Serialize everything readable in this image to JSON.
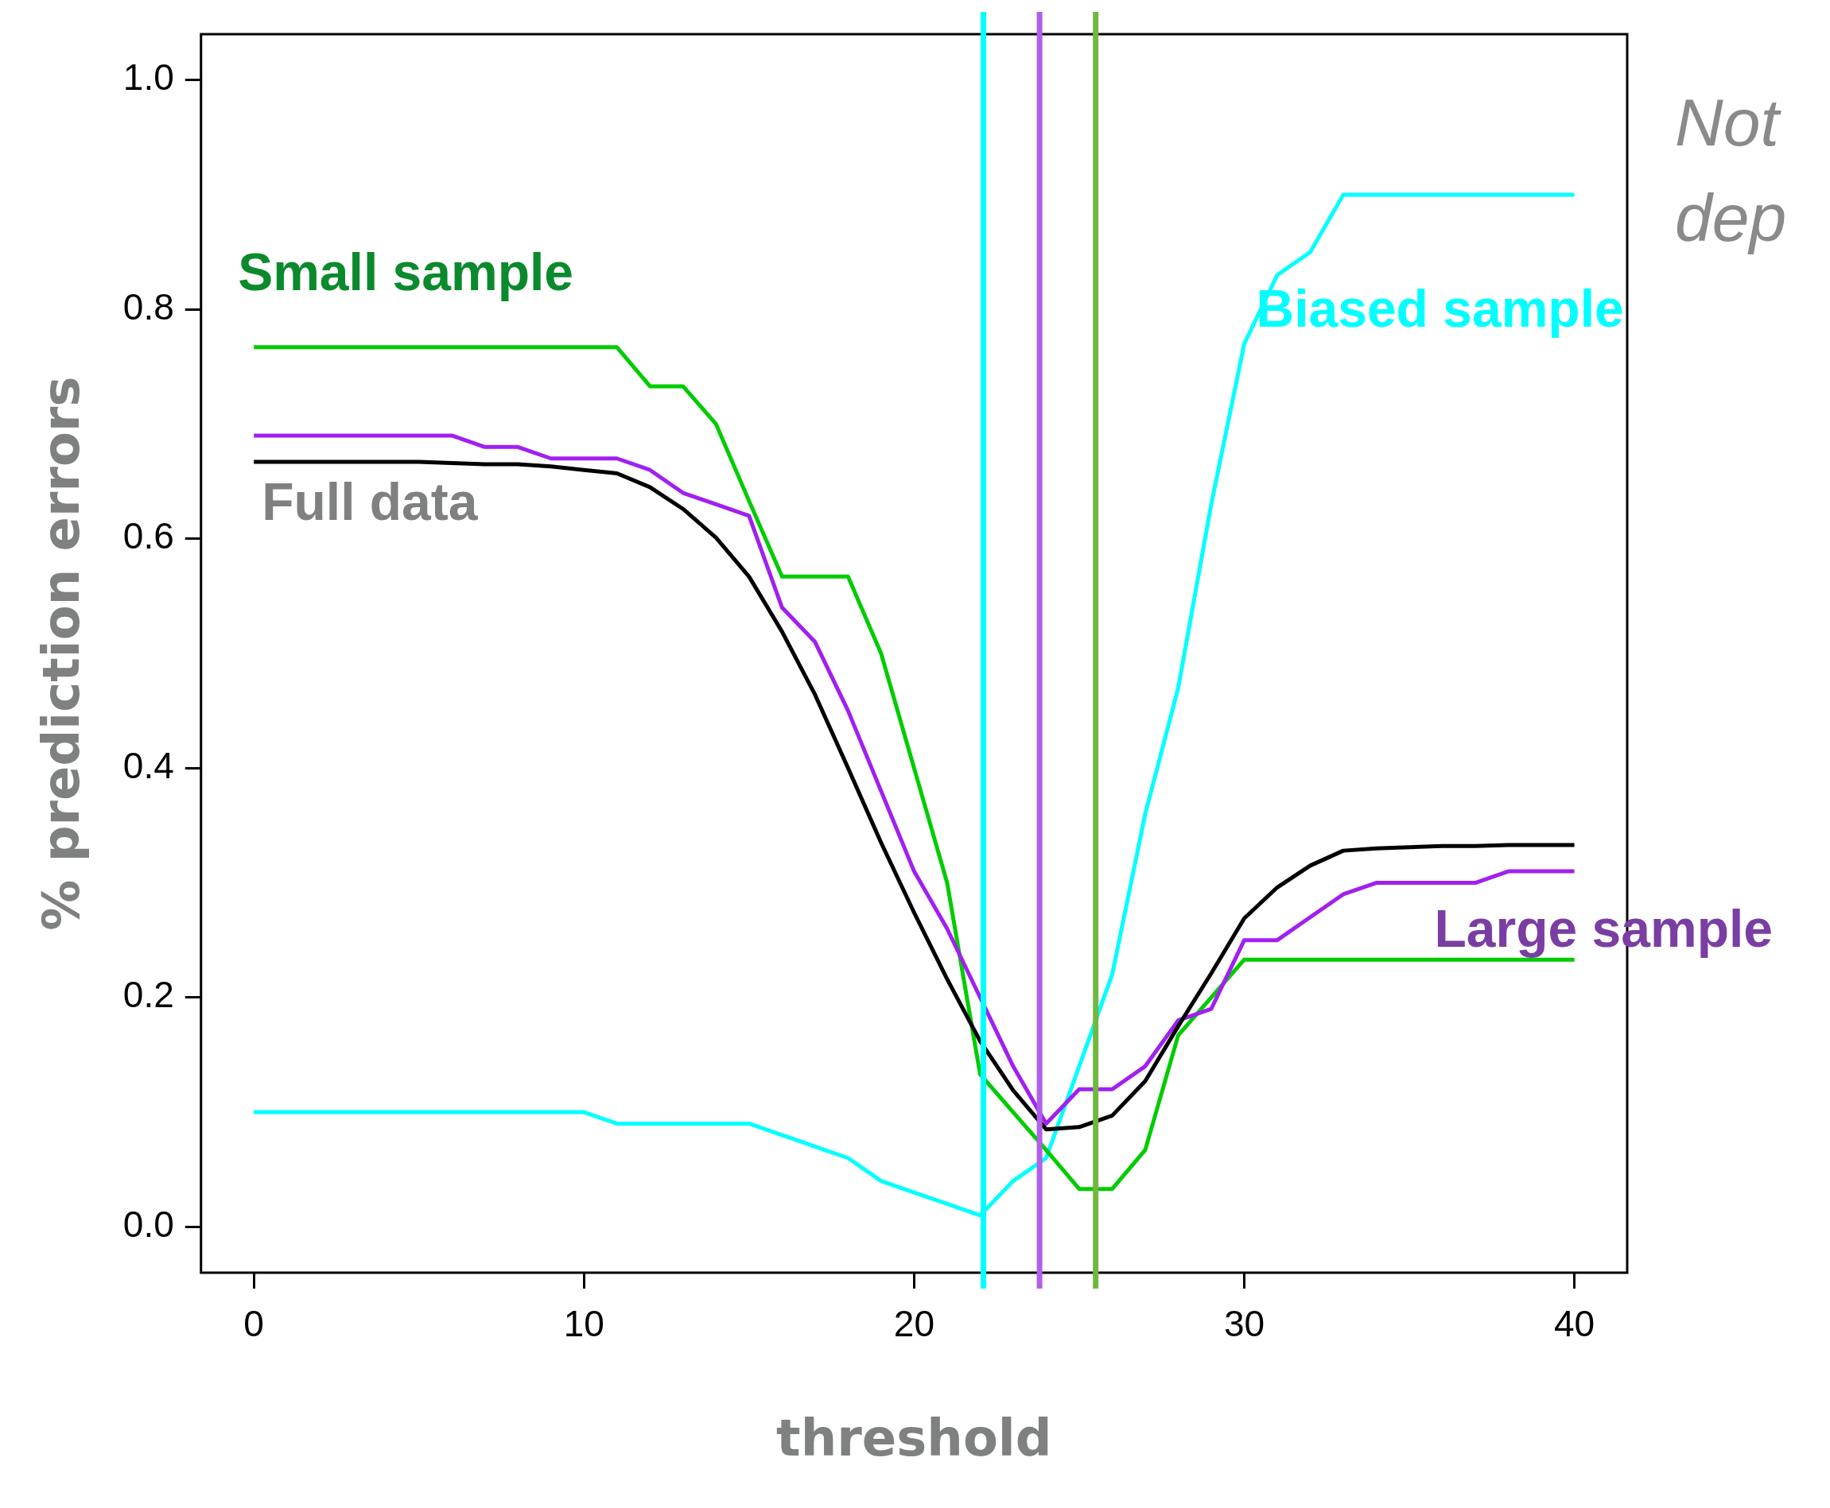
{
  "chart_data": {
    "type": "line",
    "xlabel": "threshold",
    "ylabel": "% prediction errors",
    "x": [
      0,
      1,
      2,
      3,
      4,
      5,
      6,
      7,
      8,
      9,
      10,
      11,
      12,
      13,
      14,
      15,
      16,
      17,
      18,
      19,
      20,
      21,
      22,
      23,
      24,
      25,
      26,
      27,
      28,
      29,
      30,
      31,
      32,
      33,
      34,
      35,
      36,
      37,
      38,
      39,
      40
    ],
    "series": [
      {
        "name": "Full data",
        "color": "#000000",
        "values": [
          0.667,
          0.667,
          0.667,
          0.667,
          0.667,
          0.667,
          0.666,
          0.665,
          0.665,
          0.663,
          0.66,
          0.657,
          0.645,
          0.626,
          0.601,
          0.567,
          0.519,
          0.464,
          0.4,
          0.335,
          0.274,
          0.216,
          0.162,
          0.119,
          0.085,
          0.087,
          0.097,
          0.127,
          0.175,
          0.221,
          0.269,
          0.296,
          0.315,
          0.328,
          0.33,
          0.331,
          0.332,
          0.332,
          0.333,
          0.333,
          0.333
        ]
      },
      {
        "name": "Large sample",
        "color": "#a020f0",
        "values": [
          0.69,
          0.69,
          0.69,
          0.69,
          0.69,
          0.69,
          0.69,
          0.68,
          0.68,
          0.67,
          0.67,
          0.67,
          0.66,
          0.64,
          0.63,
          0.62,
          0.54,
          0.51,
          0.45,
          0.38,
          0.31,
          0.26,
          0.2,
          0.14,
          0.09,
          0.12,
          0.12,
          0.14,
          0.18,
          0.19,
          0.25,
          0.25,
          0.27,
          0.29,
          0.3,
          0.3,
          0.3,
          0.3,
          0.31,
          0.31,
          0.31
        ]
      },
      {
        "name": "Small sample",
        "color": "#00cc00",
        "values": [
          0.767,
          0.767,
          0.767,
          0.767,
          0.767,
          0.767,
          0.767,
          0.767,
          0.767,
          0.767,
          0.767,
          0.767,
          0.733,
          0.733,
          0.7,
          0.633,
          0.567,
          0.567,
          0.567,
          0.5,
          0.4,
          0.3,
          0.133,
          0.1,
          0.067,
          0.033,
          0.033,
          0.067,
          0.167,
          0.2,
          0.233,
          0.233,
          0.233,
          0.233,
          0.233,
          0.233,
          0.233,
          0.233,
          0.233,
          0.233,
          0.233
        ]
      },
      {
        "name": "Biased sample",
        "color": "#00ffff",
        "values": [
          0.1,
          0.1,
          0.1,
          0.1,
          0.1,
          0.1,
          0.1,
          0.1,
          0.1,
          0.1,
          0.1,
          0.09,
          0.09,
          0.09,
          0.09,
          0.09,
          0.08,
          0.07,
          0.06,
          0.04,
          0.03,
          0.02,
          0.01,
          0.04,
          0.06,
          0.14,
          0.22,
          0.36,
          0.47,
          0.63,
          0.77,
          0.83,
          0.85,
          0.9,
          0.9,
          0.9,
          0.9,
          0.9,
          0.9,
          0.9,
          0.9
        ]
      }
    ],
    "ref_lines": [
      {
        "axis": "x",
        "value": 22.1,
        "color": "#00ffff"
      },
      {
        "axis": "x",
        "value": 23.8,
        "color": "#b060e8"
      },
      {
        "axis": "x",
        "value": 25.5,
        "color": "#70b840"
      }
    ],
    "annotations": [
      "Not",
      "dep"
    ],
    "xlim": [
      -1.6,
      41.6
    ],
    "xticks": [
      0,
      10,
      20,
      30,
      40
    ],
    "ylim": [
      -0.04,
      1.04
    ],
    "yticks": [
      {
        "value": 0,
        "label": "0.0"
      },
      0.2,
      0.4,
      0.6,
      0.8,
      {
        "value": 1,
        "label": "1.0"
      }
    ],
    "grid": false,
    "legend": false,
    "marker": "none",
    "line_style": "solid"
  }
}
